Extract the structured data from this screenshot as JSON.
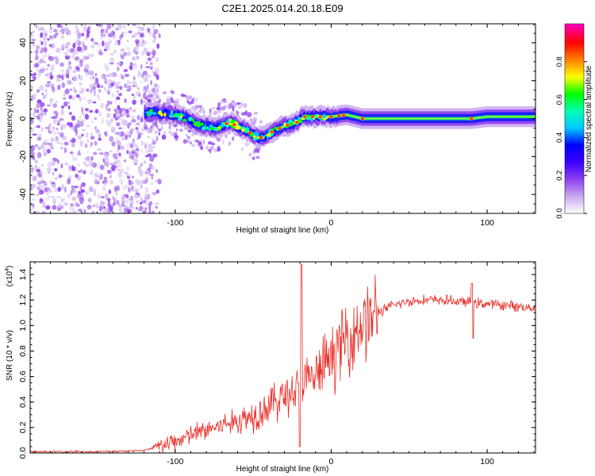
{
  "title": "C2E1.2025.014.20.18.E09",
  "chart_data": [
    {
      "type": "heatmap",
      "name": "spectrogram",
      "xlabel": "Height of straight line (km)",
      "ylabel": "Frequency (Hz)",
      "xlim": [
        -193,
        131
      ],
      "ylim": [
        -50,
        50
      ],
      "xticks": [
        -100,
        0,
        100
      ],
      "xtick_labels": [
        "-100",
        "0",
        "100"
      ],
      "yticks": [
        -40,
        -20,
        0,
        20,
        40
      ],
      "ytick_labels": [
        "-40",
        "-20",
        "0",
        "20",
        "40"
      ],
      "colorbar": {
        "label": "Normalized spectral amplitude",
        "range": [
          0.0,
          1.0
        ],
        "ticks": [
          0.0,
          0.2,
          0.4,
          0.6,
          0.8
        ],
        "tick_labels": [
          "0.0",
          "0.2",
          "0.4",
          "0.6",
          "0.8"
        ],
        "colormap": [
          "#ffffff",
          "#c9a8ee",
          "#8e3ff0",
          "#3a00ff",
          "#0000ff",
          "#00c8ff",
          "#00ffb0",
          "#00ff00",
          "#ffff00",
          "#ff8000",
          "#ff0000",
          "#ff00c0"
        ]
      },
      "signal_track": {
        "x": [
          -115,
          -105,
          -95,
          -85,
          -75,
          -65,
          -55,
          -47,
          -43,
          -38,
          -30,
          -22,
          -18,
          -10,
          0,
          10,
          20,
          40,
          60,
          80,
          90,
          100,
          110,
          131
        ],
        "freq": [
          3,
          3,
          1,
          -3,
          -5,
          -2,
          -6,
          -10,
          -10,
          -7,
          -4,
          -2,
          1,
          1,
          1,
          2,
          0,
          0,
          0,
          0,
          0,
          1,
          1,
          1
        ]
      },
      "noise_region_x": [
        -193,
        -110
      ]
    },
    {
      "type": "line",
      "name": "snr",
      "xlabel": "Height of straight line (km)",
      "ylabel": "SNR (10 * v/v)",
      "scale_label": "(x10",
      "scale_exp": "4",
      "xlim": [
        -193,
        131
      ],
      "ylim": [
        0,
        1.5
      ],
      "xticks": [
        -100,
        0,
        100
      ],
      "xtick_labels": [
        "-100",
        "0",
        "100"
      ],
      "yticks": [
        0.0,
        0.2,
        0.4,
        0.6,
        0.8,
        1.0,
        1.2,
        1.4
      ],
      "ytick_labels": [
        "0.0",
        "0.2",
        "0.4",
        "0.6",
        "0.8",
        "1.0",
        "1.2",
        "1.4"
      ],
      "series_color": "#e8302a",
      "trend": {
        "x": [
          -193,
          -150,
          -120,
          -110,
          -100,
          -90,
          -80,
          -70,
          -60,
          -50,
          -40,
          -30,
          -20,
          -10,
          0,
          10,
          20,
          30,
          40,
          50,
          60,
          70,
          80,
          90,
          100,
          110,
          120,
          131
        ],
        "y": [
          0.01,
          0.01,
          0.02,
          0.05,
          0.09,
          0.14,
          0.18,
          0.22,
          0.25,
          0.3,
          0.37,
          0.45,
          0.52,
          0.6,
          0.75,
          0.9,
          1.02,
          1.1,
          1.16,
          1.19,
          1.2,
          1.2,
          1.19,
          1.18,
          1.17,
          1.16,
          1.15,
          1.14
        ]
      },
      "spikes": [
        {
          "x": -19,
          "y": 1.48
        },
        {
          "x": -20,
          "y": 0.05
        },
        {
          "x": 90,
          "y": 1.33
        },
        {
          "x": 91,
          "y": 0.9
        }
      ]
    }
  ]
}
